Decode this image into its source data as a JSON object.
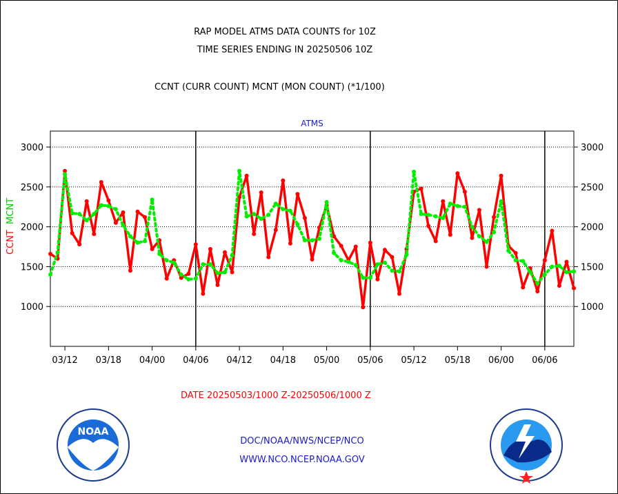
{
  "titles": {
    "line1": "RAP MODEL ATMS DATA COUNTS for 10Z",
    "line2": "TIME SERIES ENDING IN 20250506 10Z",
    "line3": "CCNT (CURR COUNT) MCNT (MON COUNT) (*1/100)"
  },
  "date_range": "DATE 20250503/1000 Z-20250506/1000 Z",
  "credits": {
    "line1": "DOC/NOAA/NWS/NCEP/NCO",
    "line2": "WWW.NCO.NCEP.NOAA.GOV"
  },
  "logos": {
    "left": {
      "icon": "noaa-logo",
      "text": "NOAA"
    },
    "right": {
      "icon": "nws-logo"
    }
  },
  "colors": {
    "ccnt": "#ff0000",
    "mcnt": "#00ee00",
    "grid": "#000000"
  },
  "chart_data": {
    "type": "line",
    "title": "ATMS",
    "ylabel_parts": [
      "CCNT",
      "MCNT"
    ],
    "ylim": [
      500,
      3200
    ],
    "yticks": [
      1000,
      1500,
      2000,
      2500,
      3000
    ],
    "xlim": [
      0,
      72
    ],
    "xticks": [
      {
        "x": 2,
        "label": "03/12"
      },
      {
        "x": 8,
        "label": "03/18"
      },
      {
        "x": 14,
        "label": "04/00"
      },
      {
        "x": 20,
        "label": "04/06"
      },
      {
        "x": 26,
        "label": "04/12"
      },
      {
        "x": 32,
        "label": "04/18"
      },
      {
        "x": 38,
        "label": "05/00"
      },
      {
        "x": 44,
        "label": "05/06"
      },
      {
        "x": 50,
        "label": "05/12"
      },
      {
        "x": 56,
        "label": "05/18"
      },
      {
        "x": 62,
        "label": "06/00"
      },
      {
        "x": 68,
        "label": "06/06"
      }
    ],
    "day_separators": [
      20,
      44,
      68
    ],
    "grid": true,
    "series": [
      {
        "name": "CCNT",
        "values": [
          1660,
          1600,
          2700,
          1920,
          1780,
          2320,
          1910,
          2560,
          2330,
          2050,
          2180,
          1450,
          2190,
          2120,
          1720,
          1830,
          1350,
          1580,
          1360,
          1410,
          1780,
          1160,
          1720,
          1270,
          1680,
          1430,
          2370,
          2640,
          1910,
          2430,
          1620,
          1960,
          2580,
          1790,
          2410,
          2110,
          1590,
          1990,
          2270,
          1880,
          1760,
          1580,
          1750,
          990,
          1800,
          1340,
          1710,
          1620,
          1160,
          1720,
          2440,
          2480,
          2010,
          1820,
          2320,
          1900,
          2670,
          2440,
          1860,
          2210,
          1500,
          2120,
          2640,
          1760,
          1670,
          1240,
          1480,
          1190,
          1580,
          1950,
          1260,
          1560,
          1230
        ]
      },
      {
        "name": "MCNT",
        "values": [
          1400,
          1680,
          2660,
          2170,
          2160,
          2080,
          2160,
          2270,
          2260,
          2220,
          2020,
          1880,
          1800,
          1820,
          2340,
          1660,
          1580,
          1550,
          1400,
          1340,
          1350,
          1530,
          1530,
          1420,
          1430,
          1640,
          2700,
          2130,
          2160,
          2100,
          2150,
          2290,
          2220,
          2200,
          2030,
          1830,
          1830,
          1850,
          2310,
          1670,
          1580,
          1560,
          1520,
          1360,
          1360,
          1530,
          1550,
          1450,
          1440,
          1650,
          2690,
          2160,
          2150,
          2130,
          2110,
          2290,
          2260,
          2250,
          2000,
          1880,
          1810,
          1930,
          2320,
          1700,
          1580,
          1570,
          1430,
          1290,
          1400,
          1500,
          1510,
          1430,
          1440
        ]
      }
    ]
  }
}
